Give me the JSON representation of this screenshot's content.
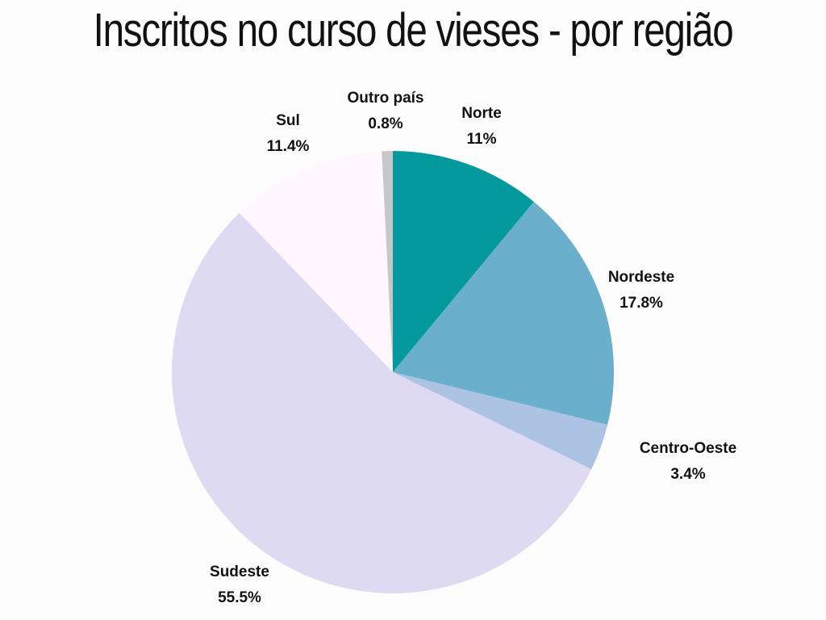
{
  "title": "Inscritos no curso de vieses - por região",
  "chart_data": {
    "type": "pie",
    "title": "Inscritos no curso de vieses - por região",
    "start_angle_deg": 0,
    "direction": "clockwise",
    "slices": [
      {
        "label": "Norte",
        "value": 11,
        "display": "11%",
        "color": "#049a9d"
      },
      {
        "label": "Nordeste",
        "value": 17.8,
        "display": "17.8%",
        "color": "#6aafcb"
      },
      {
        "label": "Centro-Oeste",
        "value": 3.4,
        "display": "3.4%",
        "color": "#adc3e3"
      },
      {
        "label": "Sudeste",
        "value": 55.5,
        "display": "55.5%",
        "color": "#dedaf1"
      },
      {
        "label": "Sul",
        "value": 11.4,
        "display": "11.4%",
        "color": "#fff7fd"
      },
      {
        "label": "Outro país",
        "value": 0.8,
        "display": "0.8%",
        "color": "#c7c7c9"
      }
    ]
  }
}
